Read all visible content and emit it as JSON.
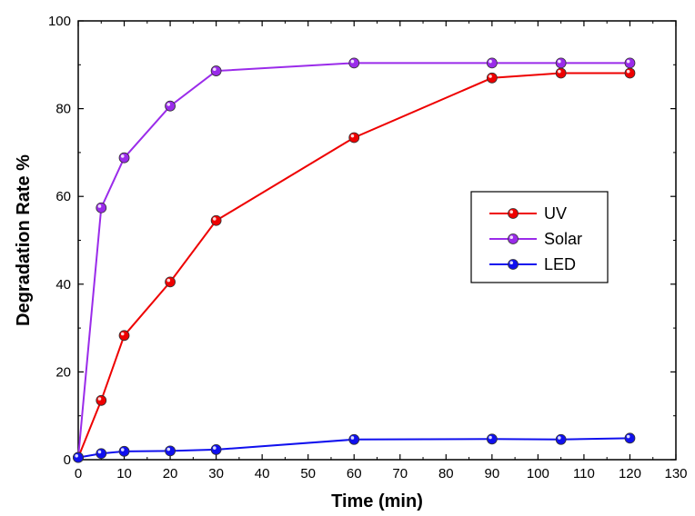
{
  "chart_data": {
    "type": "line",
    "title": "",
    "xlabel": "Time (min)",
    "ylabel": "Degradation Rate %",
    "xlim": [
      0,
      130
    ],
    "ylim": [
      0,
      100
    ],
    "xticks": [
      0,
      10,
      20,
      30,
      40,
      50,
      60,
      70,
      80,
      90,
      100,
      110,
      120,
      130
    ],
    "yticks": [
      0,
      20,
      40,
      60,
      80,
      100
    ],
    "grid": false,
    "legend_position": "right-middle",
    "series": [
      {
        "name": "UV",
        "color": "#ee0000",
        "x": [
          0,
          5,
          10,
          20,
          30,
          60,
          90,
          105,
          120
        ],
        "y": [
          0.5,
          13.5,
          28.3,
          40.5,
          54.5,
          73.4,
          87.0,
          88.1,
          88.1
        ]
      },
      {
        "name": "Solar",
        "color": "#9a2bea",
        "x": [
          0,
          5,
          10,
          20,
          30,
          60,
          90,
          105,
          120
        ],
        "y": [
          0.5,
          57.4,
          68.8,
          80.6,
          88.6,
          90.4,
          90.4,
          90.4,
          90.4
        ]
      },
      {
        "name": "LED",
        "color": "#1010ee",
        "x": [
          0,
          5,
          10,
          20,
          30,
          60,
          90,
          105,
          120
        ],
        "y": [
          0.5,
          1.4,
          1.9,
          2.0,
          2.3,
          4.6,
          4.7,
          4.6,
          4.9
        ]
      }
    ]
  }
}
